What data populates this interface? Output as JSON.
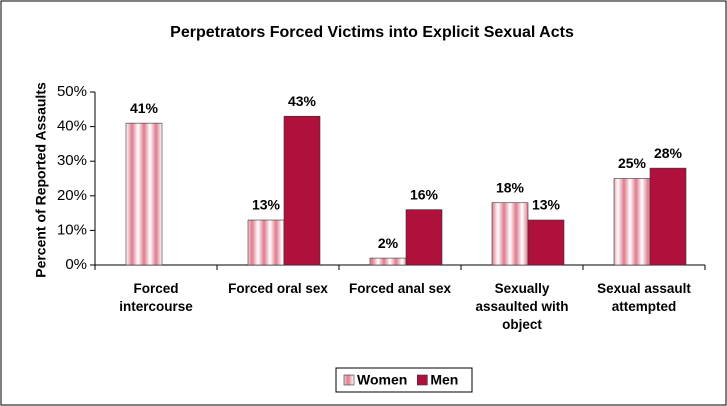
{
  "chart_data": {
    "type": "bar",
    "title": "Perpetrators Forced Victims into Explicit Sexual Acts",
    "y_label": "Percent of Reported Assaults",
    "categories": [
      "Forced intercourse",
      "Forced oral sex",
      "Forced anal sex",
      "Sexually assaulted with object",
      "Sexual assault attempted"
    ],
    "series": [
      {
        "name": "Women",
        "color": "#e07a8c",
        "values": [
          41,
          13,
          2,
          18,
          25
        ],
        "value_labels": [
          "41%",
          "13%",
          "2%",
          "18%",
          "25%"
        ]
      },
      {
        "name": "Men",
        "color": "#b0103c",
        "values": [
          null,
          43,
          16,
          13,
          28
        ],
        "value_labels": [
          null,
          "43%",
          "16%",
          "13%",
          "28%"
        ]
      }
    ],
    "ylim": [
      0,
      50
    ],
    "yticks": [
      {
        "value": 0,
        "label": "0%"
      },
      {
        "value": 10,
        "label": "10%"
      },
      {
        "value": 20,
        "label": "20%"
      },
      {
        "value": 30,
        "label": "30%"
      },
      {
        "value": 40,
        "label": "40%"
      },
      {
        "value": 50,
        "label": "50%"
      }
    ],
    "grid": false,
    "legend": "bottom"
  }
}
